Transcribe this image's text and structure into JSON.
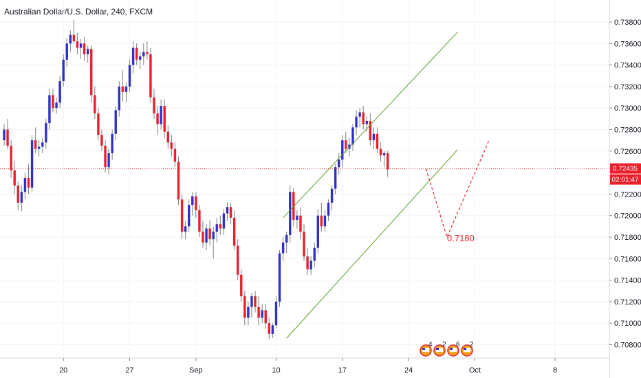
{
  "header": {
    "title": "Australian Dollar/U.S. Dollar, 240, FXCM"
  },
  "chart_data": {
    "type": "candlestick",
    "symbol": "Australian Dollar/U.S. Dollar",
    "interval": "240",
    "source": "FXCM",
    "ylim": [
      0.707,
      0.7395
    ],
    "y_ticks": [
      "0.73800",
      "0.73600",
      "0.73400",
      "0.73200",
      "0.73000",
      "0.72800",
      "0.72600",
      "0.72200",
      "0.72000",
      "0.71800",
      "0.71600",
      "0.71400",
      "0.71200",
      "0.71000",
      "0.70800"
    ],
    "x_ticks": [
      "20",
      "27",
      "Sep",
      "10",
      "17",
      "24",
      "Oct",
      "8"
    ],
    "last_price": "0.72435",
    "countdown": "02:01:47",
    "annotation": "0.7180",
    "events": [
      "4",
      "2",
      "6",
      "2"
    ],
    "colors": {
      "up": "#3030c8",
      "down": "#e8202a",
      "channel": "#5aa028",
      "price_line": "#e8202a",
      "badge": "#e8202a",
      "wick": "#7f7f7f"
    },
    "grid": true,
    "candles": [
      [
        0.727,
        0.7285,
        0.7265,
        0.728
      ],
      [
        0.728,
        0.729,
        0.7262,
        0.7265
      ],
      [
        0.7265,
        0.727,
        0.7235,
        0.7242
      ],
      [
        0.7242,
        0.725,
        0.722,
        0.7228
      ],
      [
        0.7228,
        0.7232,
        0.7205,
        0.7212
      ],
      [
        0.7212,
        0.7228,
        0.7204,
        0.7222
      ],
      [
        0.7222,
        0.724,
        0.7215,
        0.7235
      ],
      [
        0.7235,
        0.7248,
        0.722,
        0.7226
      ],
      [
        0.7226,
        0.7275,
        0.7222,
        0.727
      ],
      [
        0.727,
        0.7282,
        0.7258,
        0.7262
      ],
      [
        0.7262,
        0.727,
        0.7255,
        0.7264
      ],
      [
        0.7264,
        0.7272,
        0.7258,
        0.7268
      ],
      [
        0.7268,
        0.729,
        0.7262,
        0.7286
      ],
      [
        0.7286,
        0.7318,
        0.728,
        0.7312
      ],
      [
        0.7312,
        0.7318,
        0.7296,
        0.73
      ],
      [
        0.73,
        0.731,
        0.7295,
        0.7305
      ],
      [
        0.7305,
        0.733,
        0.73,
        0.7325
      ],
      [
        0.7325,
        0.735,
        0.732,
        0.7345
      ],
      [
        0.7345,
        0.7365,
        0.7338,
        0.736
      ],
      [
        0.736,
        0.7372,
        0.7352,
        0.7368
      ],
      [
        0.7368,
        0.7382,
        0.736,
        0.7362
      ],
      [
        0.7362,
        0.737,
        0.735,
        0.7356
      ],
      [
        0.7356,
        0.7364,
        0.7346,
        0.736
      ],
      [
        0.736,
        0.7366,
        0.7344,
        0.735
      ],
      [
        0.735,
        0.7358,
        0.7342,
        0.7355
      ],
      [
        0.7355,
        0.7358,
        0.7305,
        0.7312
      ],
      [
        0.7312,
        0.732,
        0.729,
        0.7295
      ],
      [
        0.7295,
        0.73,
        0.727,
        0.7275
      ],
      [
        0.7275,
        0.728,
        0.726,
        0.7265
      ],
      [
        0.7265,
        0.727,
        0.724,
        0.7245
      ],
      [
        0.7245,
        0.7262,
        0.7238,
        0.7258
      ],
      [
        0.7258,
        0.728,
        0.7252,
        0.7276
      ],
      [
        0.7276,
        0.7302,
        0.727,
        0.7298
      ],
      [
        0.7298,
        0.7325,
        0.7292,
        0.732
      ],
      [
        0.732,
        0.7335,
        0.7306,
        0.7315
      ],
      [
        0.7315,
        0.7324,
        0.7305,
        0.732
      ],
      [
        0.732,
        0.7345,
        0.7315,
        0.734
      ],
      [
        0.734,
        0.7362,
        0.7332,
        0.7356
      ],
      [
        0.7356,
        0.736,
        0.734,
        0.7345
      ],
      [
        0.7345,
        0.7352,
        0.7336,
        0.7348
      ],
      [
        0.7348,
        0.736,
        0.734,
        0.7352
      ],
      [
        0.7352,
        0.7362,
        0.7345,
        0.735
      ],
      [
        0.735,
        0.7356,
        0.7305,
        0.731
      ],
      [
        0.731,
        0.7318,
        0.729,
        0.7295
      ],
      [
        0.7295,
        0.7302,
        0.7275,
        0.7285
      ],
      [
        0.7285,
        0.7308,
        0.728,
        0.7302
      ],
      [
        0.7302,
        0.7308,
        0.7272,
        0.7278
      ],
      [
        0.7278,
        0.7284,
        0.7262,
        0.7268
      ],
      [
        0.7268,
        0.7275,
        0.7255,
        0.7262
      ],
      [
        0.7262,
        0.7268,
        0.7245,
        0.725
      ],
      [
        0.725,
        0.7255,
        0.721,
        0.7215
      ],
      [
        0.7215,
        0.722,
        0.7178,
        0.7185
      ],
      [
        0.7185,
        0.7195,
        0.7178,
        0.719
      ],
      [
        0.719,
        0.7215,
        0.7185,
        0.721
      ],
      [
        0.721,
        0.7222,
        0.72,
        0.7218
      ],
      [
        0.7218,
        0.7222,
        0.7198,
        0.7205
      ],
      [
        0.7205,
        0.721,
        0.718,
        0.7185
      ],
      [
        0.7185,
        0.7195,
        0.717,
        0.7175
      ],
      [
        0.7175,
        0.7192,
        0.7168,
        0.7188
      ],
      [
        0.7188,
        0.7196,
        0.7172,
        0.7178
      ],
      [
        0.7178,
        0.719,
        0.716,
        0.7185
      ],
      [
        0.7185,
        0.7198,
        0.7175,
        0.7192
      ],
      [
        0.7192,
        0.72,
        0.7182,
        0.7188
      ],
      [
        0.7188,
        0.7206,
        0.7182,
        0.7202
      ],
      [
        0.7202,
        0.7212,
        0.7195,
        0.7208
      ],
      [
        0.7208,
        0.7212,
        0.7192,
        0.7198
      ],
      [
        0.7198,
        0.7205,
        0.7168,
        0.7172
      ],
      [
        0.7172,
        0.7178,
        0.714,
        0.7145
      ],
      [
        0.7145,
        0.715,
        0.712,
        0.7125
      ],
      [
        0.7125,
        0.713,
        0.7098,
        0.7105
      ],
      [
        0.7105,
        0.712,
        0.7098,
        0.7115
      ],
      [
        0.7115,
        0.7128,
        0.7105,
        0.7125
      ],
      [
        0.7125,
        0.713,
        0.711,
        0.7115
      ],
      [
        0.7115,
        0.7125,
        0.7098,
        0.7105
      ],
      [
        0.7105,
        0.7118,
        0.71,
        0.7112
      ],
      [
        0.7112,
        0.7118,
        0.7095,
        0.71
      ],
      [
        0.71,
        0.7105,
        0.7085,
        0.709
      ],
      [
        0.709,
        0.71,
        0.7086,
        0.7098
      ],
      [
        0.7098,
        0.7125,
        0.7095,
        0.712
      ],
      [
        0.712,
        0.7168,
        0.7115,
        0.7165
      ],
      [
        0.7165,
        0.718,
        0.7158,
        0.7175
      ],
      [
        0.7175,
        0.7185,
        0.7165,
        0.7182
      ],
      [
        0.7182,
        0.7228,
        0.7175,
        0.7222
      ],
      [
        0.7222,
        0.7226,
        0.719,
        0.7196
      ],
      [
        0.7196,
        0.7205,
        0.7188,
        0.72
      ],
      [
        0.72,
        0.7208,
        0.7178,
        0.7185
      ],
      [
        0.7185,
        0.7192,
        0.7158,
        0.7162
      ],
      [
        0.7162,
        0.717,
        0.7145,
        0.715
      ],
      [
        0.715,
        0.7162,
        0.7145,
        0.7158
      ],
      [
        0.7158,
        0.7175,
        0.7152,
        0.717
      ],
      [
        0.717,
        0.7206,
        0.7165,
        0.72
      ],
      [
        0.72,
        0.7212,
        0.7185,
        0.719
      ],
      [
        0.719,
        0.7205,
        0.7185,
        0.72
      ],
      [
        0.72,
        0.7215,
        0.7195,
        0.7212
      ],
      [
        0.7212,
        0.7228,
        0.7205,
        0.7225
      ],
      [
        0.7225,
        0.7248,
        0.722,
        0.7245
      ],
      [
        0.7245,
        0.7258,
        0.7238,
        0.7252
      ],
      [
        0.7252,
        0.7275,
        0.7245,
        0.727
      ],
      [
        0.727,
        0.7278,
        0.7258,
        0.7262
      ],
      [
        0.7262,
        0.7272,
        0.7255,
        0.7266
      ],
      [
        0.7266,
        0.7285,
        0.726,
        0.7282
      ],
      [
        0.7282,
        0.7298,
        0.7275,
        0.7292
      ],
      [
        0.7292,
        0.73,
        0.7282,
        0.7296
      ],
      [
        0.7296,
        0.7302,
        0.728,
        0.7285
      ],
      [
        0.7285,
        0.7292,
        0.7278,
        0.7288
      ],
      [
        0.7288,
        0.7295,
        0.7265,
        0.727
      ],
      [
        0.727,
        0.7282,
        0.7262,
        0.7276
      ],
      [
        0.7276,
        0.7282,
        0.7258,
        0.7262
      ],
      [
        0.7262,
        0.7268,
        0.725,
        0.7256
      ],
      [
        0.7256,
        0.726,
        0.7245,
        0.7258
      ],
      [
        0.7258,
        0.726,
        0.7236,
        0.7243
      ]
    ],
    "channel_upper": [
      [
        "2018-09-10",
        0.7198
      ],
      [
        "2018-09-28",
        0.73705
      ]
    ],
    "channel_lower": [
      [
        "2018-09-11",
        0.7086
      ],
      [
        "2018-09-28",
        0.72612
      ]
    ],
    "projection": [
      [
        0.72435,
        0.718
      ],
      [
        0.718,
        0.72695
      ]
    ]
  }
}
